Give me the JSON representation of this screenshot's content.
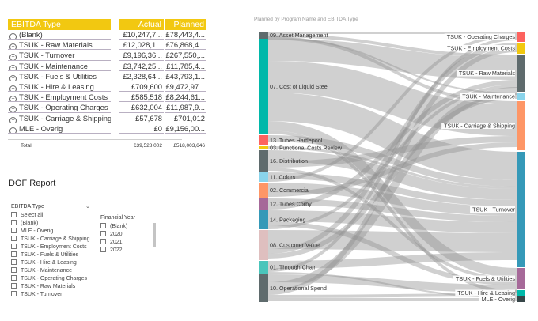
{
  "matrix": {
    "headers": {
      "type": "EBITDA Type",
      "actual": "Actual",
      "planned": "Planned"
    },
    "rows": [
      {
        "type": "(Blank)",
        "actual": "£10,247,7...",
        "planned": "£78,443,4..."
      },
      {
        "type": "TSUK - Raw Materials",
        "actual": "£12,028,1...",
        "planned": "£76,868,4..."
      },
      {
        "type": "TSUK - Turnover",
        "actual": "£9,196,36...",
        "planned": "£267,550,..."
      },
      {
        "type": "TSUK - Maintenance",
        "actual": "£3,742,25...",
        "planned": "£11,785,4..."
      },
      {
        "type": "TSUK - Fuels & Utilities",
        "actual": "£2,328,64...",
        "planned": "£43,793,1..."
      },
      {
        "type": "TSUK - Hire & Leasing",
        "actual": "£709,600",
        "planned": "£9,472,97..."
      },
      {
        "type": "TSUK - Employment Costs",
        "actual": "£585,518",
        "planned": "£8,244,61..."
      },
      {
        "type": "TSUK - Operating Charges",
        "actual": "£632,004",
        "planned": "£11,987,9..."
      },
      {
        "type": "TSUK - Carriage & Shipping",
        "actual": "£57,678",
        "planned": "£701,012"
      },
      {
        "type": "MLE - Overig",
        "actual": "£0",
        "planned": "£9,156,00..."
      }
    ],
    "total": {
      "label": "Total",
      "actual": "£39,528,002",
      "planned": "£518,003,646"
    }
  },
  "report_title": "DOF Report",
  "slicer_ebitda": {
    "title": "EBITDA Type",
    "items": [
      "Select all",
      "(Blank)",
      "MLE - Overig",
      "TSUK - Carriage & Shipping",
      "TSUK - Employment Costs",
      "TSUK - Fuels & Utilities",
      "TSUK - Hire & Leasing",
      "TSUK - Maintenance",
      "TSUK - Operating Charges",
      "TSUK - Raw Materials",
      "TSUK - Turnover"
    ]
  },
  "slicer_year": {
    "title": "Financial Year",
    "items": [
      "(Blank)",
      "2020",
      "2021",
      "2022"
    ]
  },
  "icons": {
    "expand": "plus-circle-icon",
    "dropdown": "chevron-down-icon"
  },
  "sankey": {
    "subtitle": "Planned by Program Name and EBITDA Type",
    "left_nodes": [
      {
        "name": "09. Asset Management",
        "color": "#5f6b6d"
      },
      {
        "name": "07. Cost of Liquid Steel",
        "color": "#01b8aa"
      },
      {
        "name": "13. Tubes Hartlepool",
        "color": "#fd625e"
      },
      {
        "name": "03. Functional Costs Review",
        "color": "#f2c80f"
      },
      {
        "name": "16. Distribution",
        "color": "#5f6b6d"
      },
      {
        "name": "11. Colors",
        "color": "#8ad4eb"
      },
      {
        "name": "02. Commercial",
        "color": "#fe9666"
      },
      {
        "name": "12. Tubes Corby",
        "color": "#a66999"
      },
      {
        "name": "14. Packaging",
        "color": "#3599b8"
      },
      {
        "name": "08. Customer Value",
        "color": "#dfbfbf"
      },
      {
        "name": "01. Through Chain",
        "color": "#4ac5bb"
      },
      {
        "name": "10. Operational Spend",
        "color": "#5f6b6d"
      }
    ],
    "right_nodes": [
      {
        "name": "TSUK - Operating Charges",
        "color": "#fd625e"
      },
      {
        "name": "TSUK - Employment Costs",
        "color": "#f2c80f"
      },
      {
        "name": "TSUK - Raw Materials",
        "color": "#5f6b6d"
      },
      {
        "name": "TSUK - Maintenance",
        "color": "#8ad4eb"
      },
      {
        "name": "TSUK - Carriage & Shipping",
        "color": "#fe9666"
      },
      {
        "name": "TSUK - Turnover",
        "color": "#3599b8"
      },
      {
        "name": "TSUK - Fuels & Utilities",
        "color": "#a66999"
      },
      {
        "name": "TSUK - Hire & Leasing",
        "color": "#01b8aa"
      },
      {
        "name": "MLE - Overig",
        "color": "#374649"
      }
    ]
  }
}
